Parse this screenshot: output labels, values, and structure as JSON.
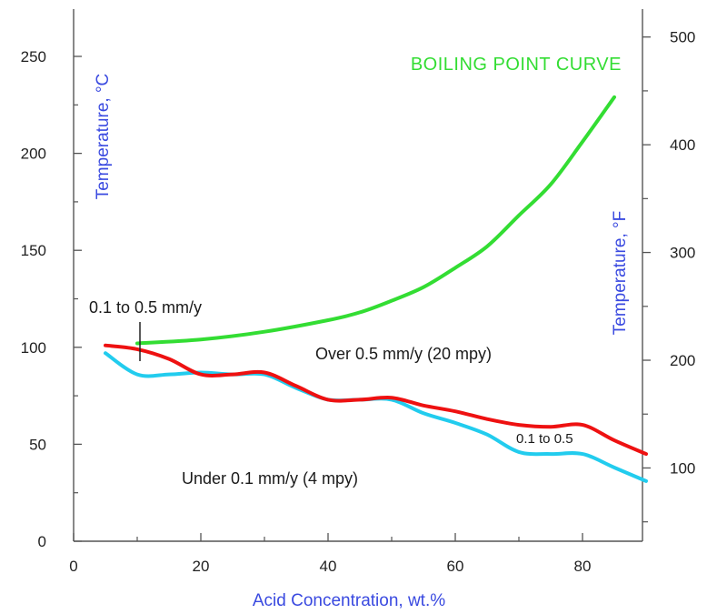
{
  "chart_data": {
    "type": "line",
    "title": "",
    "xlabel": "Acid Concentration, wt.%",
    "ylabel": "Temperature, °C",
    "ylabel_right": "Temperature, °F",
    "xlim": [
      0,
      90
    ],
    "ylim": [
      0,
      250
    ],
    "ylim_right_f": [
      32,
      482
    ],
    "x_ticks": [
      0,
      20,
      40,
      60,
      80
    ],
    "y_ticks": [
      0,
      50,
      100,
      150,
      200,
      250
    ],
    "y_right_ticks": [
      100,
      200,
      300,
      400,
      500
    ],
    "grid": false,
    "series": [
      {
        "name": "BOILING POINT CURVE",
        "color": "#33dd33",
        "x": [
          10,
          20,
          30,
          40,
          45,
          50,
          55,
          60,
          65,
          70,
          75,
          80,
          85
        ],
        "y": [
          102,
          104,
          108,
          114,
          118,
          124,
          131,
          141,
          152,
          168,
          184,
          206,
          229
        ]
      },
      {
        "name": "",
        "color": "#ee1111",
        "x": [
          5,
          10,
          15,
          20,
          25,
          30,
          35,
          40,
          45,
          50,
          55,
          60,
          65,
          70,
          75,
          80,
          85,
          90
        ],
        "y": [
          101,
          99,
          94,
          86,
          86,
          87,
          80,
          73,
          73,
          74,
          70,
          67,
          63,
          60,
          59,
          60,
          52,
          45
        ]
      },
      {
        "name": "",
        "color": "#22ccee",
        "x": [
          5,
          10,
          15,
          20,
          25,
          30,
          35,
          40,
          45,
          50,
          55,
          60,
          65,
          70,
          75,
          80,
          85,
          90
        ],
        "y": [
          97,
          86,
          86,
          87,
          86,
          86,
          79,
          73,
          73,
          73,
          66,
          61,
          55,
          46,
          45,
          45,
          38,
          31
        ]
      }
    ],
    "annotations": {
      "low_range": "0.1 to 0.5 mm/y",
      "over": "Over 0.5 mm/y (20 mpy)",
      "under": "Under 0.1 mm/y (4 mpy)",
      "mid_range": "0.1 to 0.5"
    },
    "colors": {
      "axis_title": "#3a4ae0",
      "axis": "#555555"
    }
  }
}
